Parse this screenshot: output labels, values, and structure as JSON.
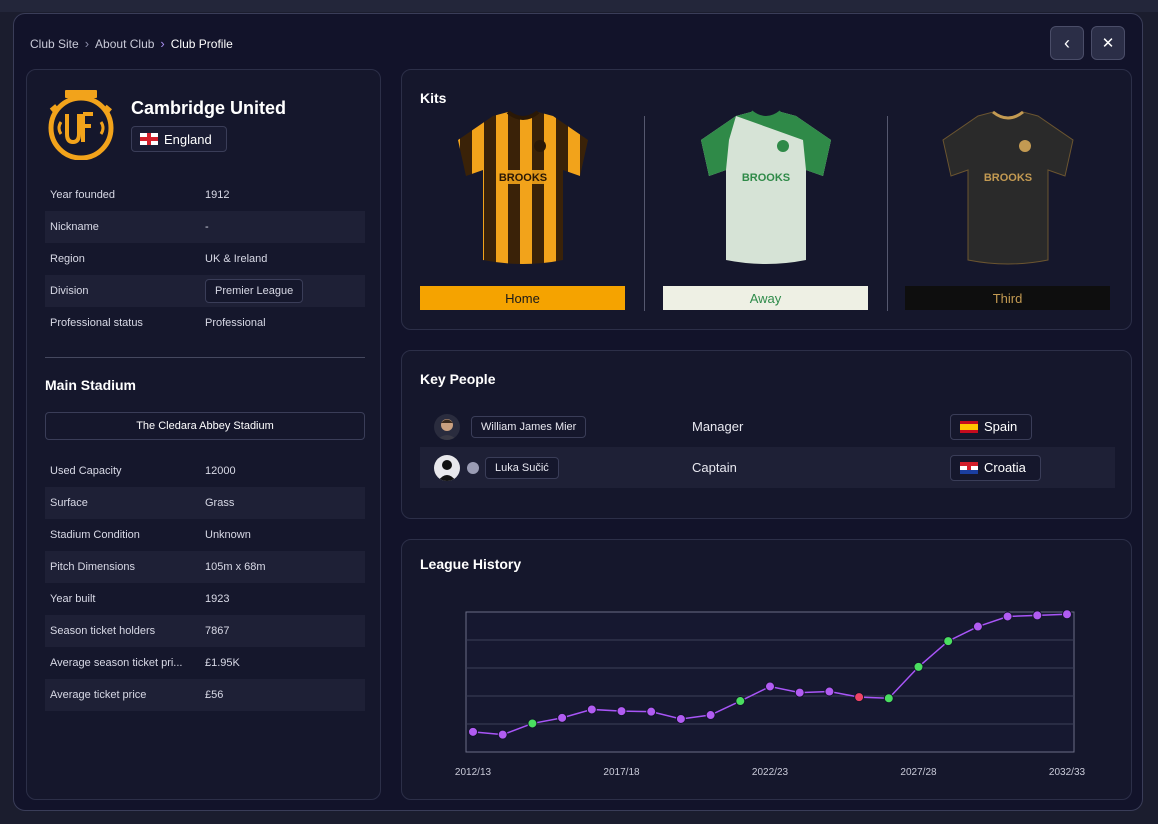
{
  "breadcrumb": {
    "items": [
      "Club Site",
      "About Club"
    ],
    "current": "Club Profile"
  },
  "nav": {
    "back_icon": "‹",
    "close_icon": "✕"
  },
  "club": {
    "name": "Cambridge United",
    "country": "England",
    "colors": {
      "primary": "#f2a31b",
      "dark": "#1a1a1a"
    },
    "info": [
      {
        "label": "Year founded",
        "value": "1912"
      },
      {
        "label": "Nickname",
        "value": "-"
      },
      {
        "label": "Region",
        "value": "UK & Ireland"
      },
      {
        "label": "Division",
        "value": "Premier League"
      },
      {
        "label": "Professional status",
        "value": "Professional"
      }
    ]
  },
  "stadium": {
    "heading": "Main Stadium",
    "name": "The Cledara Abbey Stadium",
    "info": [
      {
        "label": "Used Capacity",
        "value": "12000"
      },
      {
        "label": "Surface",
        "value": "Grass"
      },
      {
        "label": "Stadium Condition",
        "value": "Unknown"
      },
      {
        "label": "Pitch Dimensions",
        "value": "105m x 68m"
      },
      {
        "label": "Year built",
        "value": "1923"
      },
      {
        "label": "Season ticket holders",
        "value": "7867"
      },
      {
        "label": "Average season ticket pri...",
        "value": "£1.95K"
      },
      {
        "label": "Average ticket price",
        "value": "£56"
      }
    ]
  },
  "kits": {
    "title": "Kits",
    "sponsor": "BROOKS",
    "items": [
      {
        "label": "Home",
        "bg": "#f5a300",
        "fg": "#1a1a1a"
      },
      {
        "label": "Away",
        "bg": "#eef0e4",
        "fg": "#2e8b4a"
      },
      {
        "label": "Third",
        "bg": "#0e0e0e",
        "fg": "#c39a52"
      }
    ]
  },
  "key_people": {
    "title": "Key People",
    "people": [
      {
        "name": "William James Mier",
        "role": "Manager",
        "nation": "Spain"
      },
      {
        "name": "Luka Sučić",
        "role": "Captain",
        "nation": "Croatia"
      }
    ]
  },
  "league_history": {
    "title": "League History"
  },
  "chart_data": {
    "type": "line",
    "x": [
      "2012/13",
      "2013/14",
      "2014/15",
      "2015/16",
      "2016/17",
      "2017/18",
      "2018/19",
      "2019/20",
      "2020/21",
      "2021/22",
      "2022/23",
      "2023/24",
      "2024/25",
      "2025/26",
      "2026/27",
      "2027/28",
      "2028/29",
      "2029/30",
      "2030/31",
      "2031/32",
      "2032/33"
    ],
    "y": [
      14.4,
      12.4,
      20.4,
      24.4,
      30.4,
      29.2,
      28.8,
      23.6,
      26.4,
      36.4,
      46.8,
      42.4,
      43.2,
      39.2,
      38.4,
      60.8,
      79.2,
      89.6,
      96.8,
      97.6,
      98.4
    ],
    "point_status": [
      "normal",
      "normal",
      "promotion",
      "normal",
      "normal",
      "normal",
      "normal",
      "normal",
      "normal",
      "promotion",
      "normal",
      "normal",
      "normal",
      "relegation",
      "promotion",
      "promotion",
      "promotion",
      "normal",
      "normal",
      "normal",
      "normal"
    ],
    "x_tick_labels": [
      "2012/13",
      "2017/18",
      "2022/23",
      "2027/28",
      "2032/33"
    ],
    "ylim": [
      0,
      100
    ],
    "grid": true,
    "colors": {
      "line": "#a855f7",
      "normal": "#b15cf2",
      "promotion": "#4ade60",
      "relegation": "#ef4466"
    }
  }
}
